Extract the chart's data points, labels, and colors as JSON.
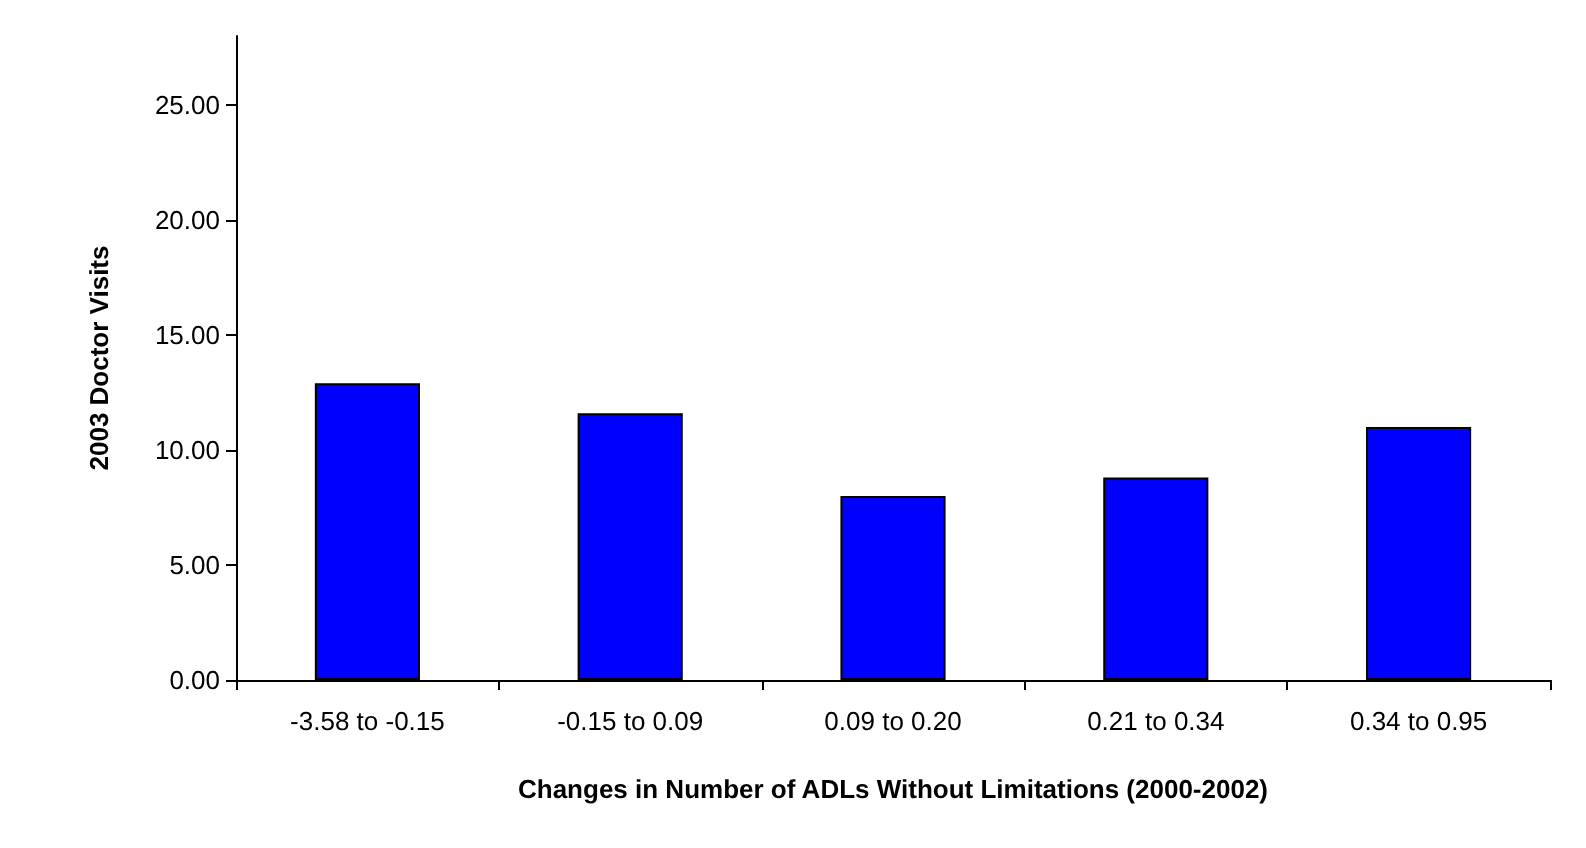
{
  "chart_data": {
    "type": "bar",
    "xlabel": "Changes in Number of ADLs Without Limitations (2000-2002)",
    "ylabel": "2003 Doctor Visits",
    "categories": [
      "-3.58 to -0.15",
      "-0.15 to 0.09",
      "0.09 to 0.20",
      "0.21 to 0.34",
      "0.34 to 0.95"
    ],
    "values": [
      12.9,
      11.6,
      8.0,
      8.8,
      11.0
    ],
    "color": "#0000ff",
    "ylim": [
      0,
      28
    ],
    "yticks": [
      {
        "value": 0,
        "label": "0.00"
      },
      {
        "value": 5,
        "label": "5.00"
      },
      {
        "value": 10,
        "label": "10.00"
      },
      {
        "value": 15,
        "label": "15.00"
      },
      {
        "value": 20,
        "label": "20.00"
      },
      {
        "value": 25,
        "label": "25.00"
      }
    ],
    "grid": false
  }
}
